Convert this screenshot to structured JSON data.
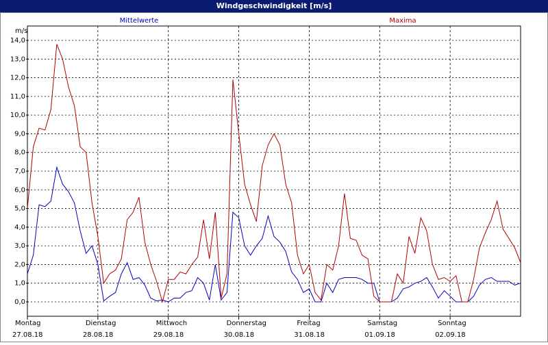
{
  "chart_data": {
    "type": "line",
    "title": "Windgeschwindigkeit [m/s]",
    "y_unit": "m/s",
    "x": [
      0,
      2,
      4,
      6,
      8,
      10,
      12,
      14,
      16,
      18,
      20,
      22,
      24,
      26,
      28,
      30,
      32,
      34,
      36,
      38,
      40,
      42,
      44,
      46,
      48,
      50,
      52,
      54,
      56,
      58,
      60,
      62,
      64,
      66,
      68,
      70,
      72,
      74,
      76,
      78,
      80,
      82,
      84,
      86,
      88,
      90,
      92,
      94,
      96,
      98,
      100,
      102,
      104,
      106,
      108,
      110,
      112,
      114,
      116,
      118,
      120,
      122,
      124,
      126,
      128,
      130,
      132,
      134,
      136,
      138,
      140,
      142,
      144,
      146,
      148,
      150,
      152,
      154,
      156,
      158,
      160,
      162,
      164,
      166,
      168
    ],
    "series": [
      {
        "name": "Mittelwerte",
        "color": "#0000c0",
        "values": [
          1.5,
          2.5,
          5.2,
          5.1,
          5.4,
          7.2,
          6.3,
          5.9,
          5.3,
          3.8,
          2.6,
          3.0,
          2.0,
          0.05,
          0.3,
          0.5,
          1.5,
          2.1,
          1.2,
          1.3,
          0.9,
          0.2,
          0.05,
          0.1,
          0.0,
          0.2,
          0.2,
          0.5,
          0.6,
          1.3,
          1.0,
          0.1,
          2.0,
          0.1,
          0.5,
          4.8,
          4.5,
          3.0,
          2.5,
          3.0,
          3.4,
          4.6,
          3.5,
          3.2,
          2.7,
          1.6,
          1.2,
          0.5,
          0.7,
          0.0,
          0.0,
          1.0,
          0.5,
          1.2,
          1.3,
          1.3,
          1.3,
          1.2,
          1.0,
          1.0,
          0.0,
          0.0,
          0.0,
          0.2,
          0.7,
          0.8,
          1.0,
          1.1,
          1.3,
          0.8,
          0.2,
          0.6,
          0.3,
          0.0,
          0.0,
          0.0,
          0.3,
          0.9,
          1.2,
          1.3,
          1.1,
          1.1,
          1.1,
          0.9,
          1.0
        ]
      },
      {
        "name": "Maxima",
        "color": "#b00000",
        "values": [
          5.0,
          8.3,
          9.3,
          9.2,
          10.3,
          13.8,
          13.0,
          11.5,
          10.5,
          8.3,
          8.0,
          5.3,
          3.5,
          1.0,
          1.5,
          1.7,
          2.3,
          4.4,
          4.8,
          5.6,
          3.2,
          2.0,
          1.1,
          0.0,
          1.2,
          1.2,
          1.6,
          1.5,
          2.0,
          2.4,
          4.4,
          2.3,
          4.8,
          0.2,
          1.5,
          11.9,
          9.0,
          6.3,
          5.2,
          4.3,
          7.3,
          8.4,
          9.0,
          8.4,
          6.3,
          5.3,
          2.5,
          1.5,
          2.0,
          0.5,
          0.1,
          2.0,
          1.7,
          3.0,
          5.8,
          3.4,
          3.3,
          2.5,
          2.3,
          0.3,
          0.0,
          0.0,
          0.0,
          1.5,
          1.0,
          3.5,
          2.6,
          4.5,
          3.8,
          2.0,
          1.2,
          1.3,
          1.1,
          1.4,
          0.0,
          0.0,
          1.2,
          2.9,
          3.7,
          4.4,
          5.4,
          3.9,
          3.4,
          2.9,
          2.1
        ]
      }
    ],
    "xlim": [
      0,
      168
    ],
    "xticks": [
      {
        "value": 0,
        "label": "Montag"
      },
      {
        "value": 24,
        "label": "Dienstag"
      },
      {
        "value": 48,
        "label": "Mittwoch"
      },
      {
        "value": 72,
        "label": "Donnerstag"
      },
      {
        "value": 96,
        "label": "Freitag"
      },
      {
        "value": 120,
        "label": "Samstag"
      },
      {
        "value": 144,
        "label": "Sonntag"
      }
    ],
    "xtick_dates": [
      "27.08.18",
      "28.08.18",
      "29.08.18",
      "30.08.18",
      "31.08.18",
      "01.09.18",
      "02.09.18"
    ],
    "ylim": [
      -0.77,
      14.77
    ],
    "yticks": [
      {
        "value": 0,
        "label": "0,0"
      },
      {
        "value": 1,
        "label": "1,0"
      },
      {
        "value": 2,
        "label": "2,0"
      },
      {
        "value": 3,
        "label": "3,0"
      },
      {
        "value": 4,
        "label": "4,0"
      },
      {
        "value": 5,
        "label": "5,0"
      },
      {
        "value": 6,
        "label": "6,0"
      },
      {
        "value": 7,
        "label": "7,0"
      },
      {
        "value": 8,
        "label": "8,0"
      },
      {
        "value": 9,
        "label": "9,0"
      },
      {
        "value": 10,
        "label": "10,0"
      },
      {
        "value": 11,
        "label": "11,0"
      },
      {
        "value": 12,
        "label": "12,0"
      },
      {
        "value": 13,
        "label": "13,0"
      },
      {
        "value": 14,
        "label": "14,0"
      }
    ],
    "grid": true
  }
}
